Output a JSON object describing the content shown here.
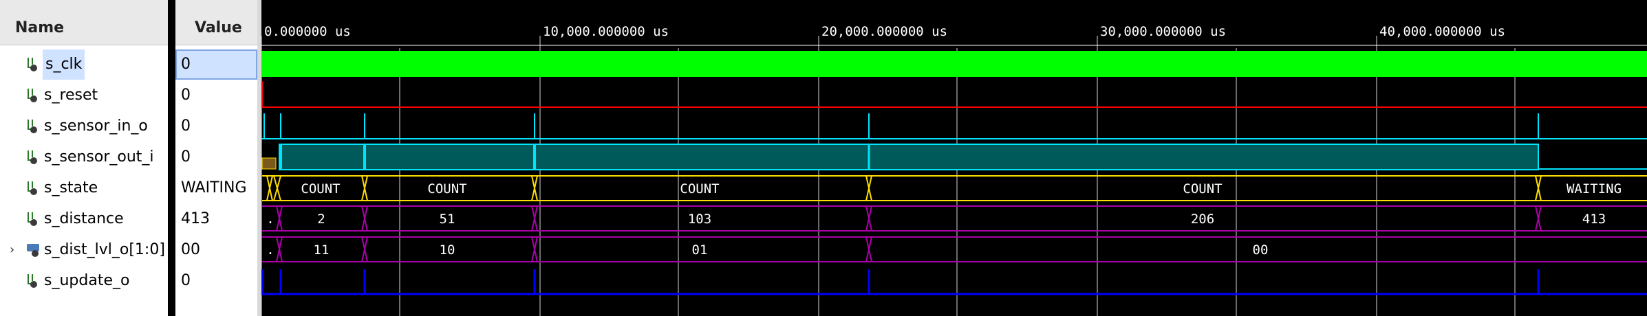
{
  "headers": {
    "name": "Name",
    "value": "Value"
  },
  "signals": [
    {
      "name": "s_clk",
      "value": "0",
      "icon": "signal-icon",
      "selected": true
    },
    {
      "name": "s_reset",
      "value": "0",
      "icon": "signal-icon"
    },
    {
      "name": "s_sensor_in_o",
      "value": "0",
      "icon": "signal-icon"
    },
    {
      "name": "s_sensor_out_i",
      "value": "0",
      "icon": "signal-icon"
    },
    {
      "name": "s_state",
      "value": "WAITING",
      "icon": "signal-icon"
    },
    {
      "name": "s_distance",
      "value": "413",
      "icon": "signal-icon"
    },
    {
      "name": "s_dist_lvl_o[1:0]",
      "value": "00",
      "icon": "bus-icon",
      "expandable": true
    },
    {
      "name": "s_update_o",
      "value": "0",
      "icon": "signal-icon"
    }
  ],
  "time_ruler": [
    "0.000000 us",
    "10,000.000000 us",
    "20,000.000000 us",
    "30,000.000000 us",
    "40,000.000000 us"
  ],
  "bus_labels": {
    "s_state": [
      "COUNT",
      "COUNT",
      "COUNT",
      "COUNT",
      "WAITING"
    ],
    "s_distance": [
      ".",
      "2",
      "51",
      "103",
      "206",
      "413"
    ],
    "s_dist_lvl_o": [
      ".",
      "11",
      "10",
      "01",
      "00"
    ]
  },
  "colors": {
    "clk": "#00ff00",
    "reset": "#ff0000",
    "sensor": "#00e5ff",
    "sensor_fill": "#005a5a",
    "state": "#ffdd00",
    "bus": "#aa00aa",
    "update": "#0000ff"
  }
}
